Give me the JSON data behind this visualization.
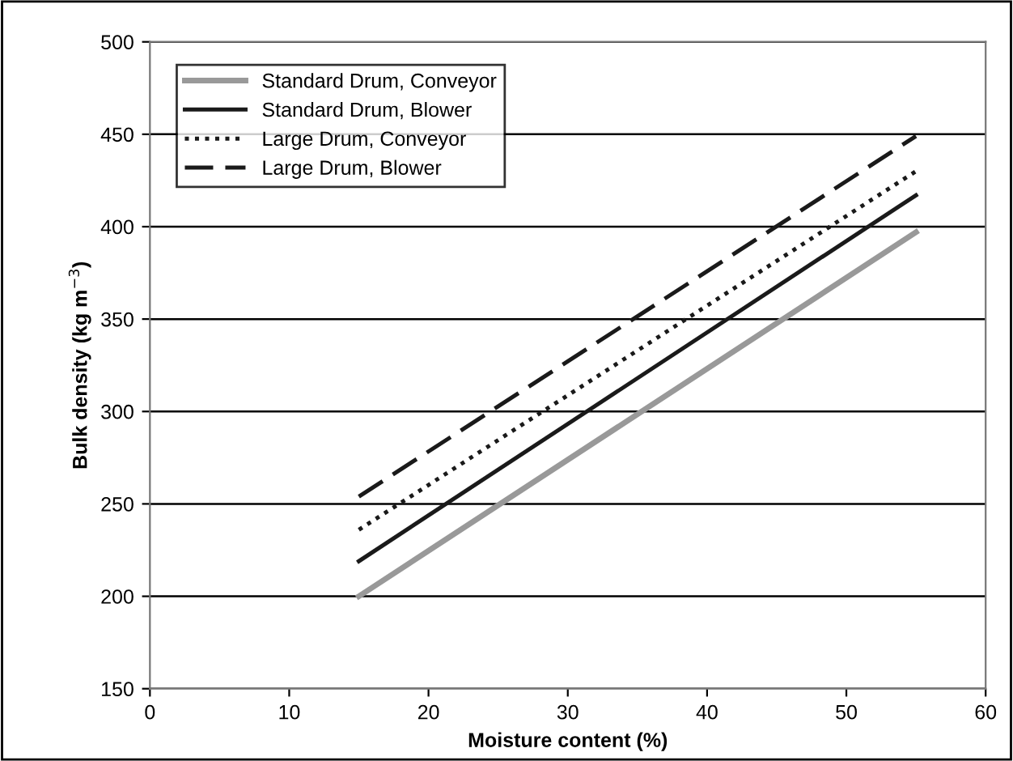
{
  "chart_data": {
    "type": "line",
    "xlabel": "Moisture content (%)",
    "ylabel": "Bulk density (kg m$^{−3}$)",
    "xlim": [
      0,
      60
    ],
    "xticks": [
      0,
      10,
      20,
      30,
      40,
      50,
      60
    ],
    "ylim": [
      150,
      500
    ],
    "yticks": [
      150,
      200,
      250,
      300,
      350,
      400,
      450,
      500
    ],
    "grid": "y",
    "legend": "top left",
    "x": [
      15,
      55
    ],
    "series": [
      {
        "name": "Standard Drum, Conveyor",
        "color": "#999999",
        "values": [
          200,
          397
        ],
        "line_style": "solid"
      },
      {
        "name": "Standard Drum, Blower",
        "color": "#1a1a1a",
        "values": [
          219,
          417
        ],
        "line_style": "solid"
      },
      {
        "name": "Large Drum, Conveyor",
        "color": "#1a1a1a",
        "values": [
          236,
          430
        ],
        "line_style": "dotted"
      },
      {
        "name": "Large Drum, Blower",
        "color": "#1a1a1a",
        "values": [
          254,
          449
        ],
        "line_style": "dashed"
      }
    ]
  }
}
